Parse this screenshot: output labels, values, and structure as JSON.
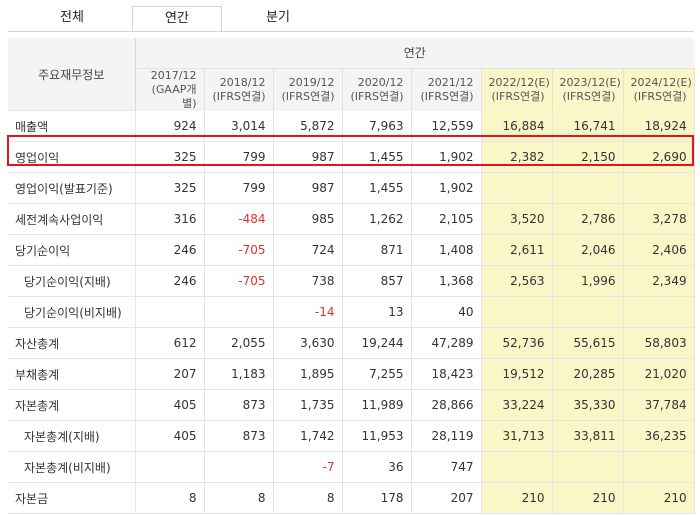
{
  "tabs": [
    {
      "label": "전체",
      "active": false
    },
    {
      "label": "연간",
      "active": true
    },
    {
      "label": "분기",
      "active": false
    }
  ],
  "table": {
    "corner_label": "주요재무정보",
    "group_label": "연간",
    "columns": [
      {
        "period": "2017/12",
        "basis": "(GAAP개별)",
        "estimate": false
      },
      {
        "period": "2018/12",
        "basis": "(IFRS연결)",
        "estimate": false
      },
      {
        "period": "2019/12",
        "basis": "(IFRS연결)",
        "estimate": false
      },
      {
        "period": "2020/12",
        "basis": "(IFRS연결)",
        "estimate": false
      },
      {
        "period": "2021/12",
        "basis": "(IFRS연결)",
        "estimate": false
      },
      {
        "period": "2022/12(E)",
        "basis": "(IFRS연결)",
        "estimate": true
      },
      {
        "period": "2023/12(E)",
        "basis": "(IFRS연결)",
        "estimate": true
      },
      {
        "period": "2024/12(E)",
        "basis": "(IFRS연결)",
        "estimate": true
      }
    ],
    "rows": [
      {
        "label": "매출액",
        "sub": false,
        "values": [
          "924",
          "3,014",
          "5,872",
          "7,963",
          "12,559",
          "16,884",
          "16,741",
          "18,924"
        ]
      },
      {
        "label": "영업이익",
        "sub": false,
        "highlight": true,
        "values": [
          "325",
          "799",
          "987",
          "1,455",
          "1,902",
          "2,382",
          "2,150",
          "2,690"
        ]
      },
      {
        "label": "영업이익(발표기준)",
        "sub": false,
        "values": [
          "325",
          "799",
          "987",
          "1,455",
          "1,902",
          "",
          "",
          ""
        ]
      },
      {
        "label": "세전계속사업이익",
        "sub": false,
        "values": [
          "316",
          "-484",
          "985",
          "1,262",
          "2,105",
          "3,520",
          "2,786",
          "3,278"
        ]
      },
      {
        "label": "당기순이익",
        "sub": false,
        "values": [
          "246",
          "-705",
          "724",
          "871",
          "1,408",
          "2,611",
          "2,046",
          "2,406"
        ]
      },
      {
        "label": "당기순이익(지배)",
        "sub": true,
        "values": [
          "246",
          "-705",
          "738",
          "857",
          "1,368",
          "2,563",
          "1,996",
          "2,349"
        ]
      },
      {
        "label": "당기순이익(비지배)",
        "sub": true,
        "values": [
          "",
          "",
          "-14",
          "13",
          "40",
          "",
          "",
          ""
        ]
      },
      {
        "label": "자산총계",
        "sub": false,
        "values": [
          "612",
          "2,055",
          "3,630",
          "19,244",
          "47,289",
          "52,736",
          "55,615",
          "58,803"
        ]
      },
      {
        "label": "부채총계",
        "sub": false,
        "values": [
          "207",
          "1,183",
          "1,895",
          "7,255",
          "18,423",
          "19,512",
          "20,285",
          "21,020"
        ]
      },
      {
        "label": "자본총계",
        "sub": false,
        "values": [
          "405",
          "873",
          "1,735",
          "11,989",
          "28,866",
          "33,224",
          "35,330",
          "37,784"
        ]
      },
      {
        "label": "자본총계(지배)",
        "sub": true,
        "values": [
          "405",
          "873",
          "1,742",
          "11,953",
          "28,119",
          "31,713",
          "33,811",
          "36,235"
        ]
      },
      {
        "label": "자본총계(비지배)",
        "sub": true,
        "values": [
          "",
          "",
          "-7",
          "36",
          "747",
          "",
          "",
          ""
        ]
      },
      {
        "label": "자본금",
        "sub": false,
        "values": [
          "8",
          "8",
          "8",
          "178",
          "207",
          "210",
          "210",
          "210"
        ]
      }
    ],
    "negative_color": "#dd3333",
    "estimate_bg": "#fbf6c8",
    "highlight_color": "#e5141c"
  }
}
